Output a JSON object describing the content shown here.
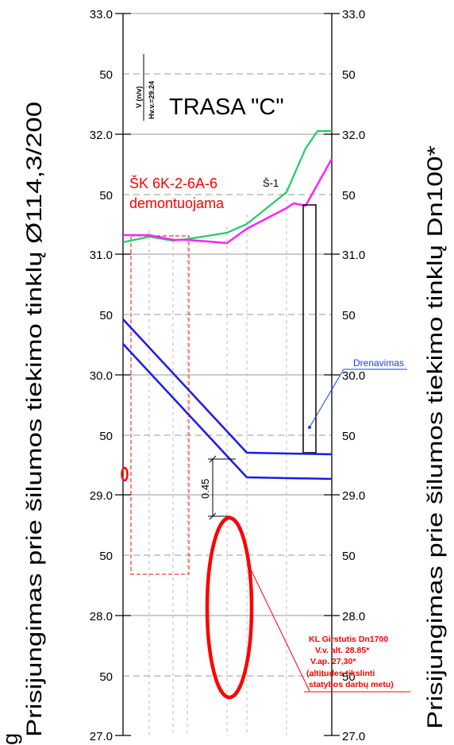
{
  "left_axis_title": "Prisijungimas prie šilumos tiekimo tinklų Ø114,3/200",
  "right_axis_title": "Prisijungimas prie šilumos tiekimo tinklų Dn100*",
  "left_axis_cut_glyph": "g",
  "title": "TRASA \"C\"",
  "scale_label_top": "V (n/v)",
  "scale_label_bottom": "Hv.v.=29.24",
  "axis_ticks": [
    "33.0",
    "50",
    "32.0",
    "50",
    "31.0",
    "50",
    "30.0",
    "50",
    "29.0",
    "50",
    "28.0",
    "50",
    "27.0"
  ],
  "demolition_note": {
    "line1": "ŠK 6K-2-6A-6",
    "line2": "demontuojama"
  },
  "well_label": "Š-1",
  "drainage_label": "Drenavimas",
  "clearance_label": "0.45",
  "crossing_note": {
    "line1": "KL Girstutis Dn1700",
    "line2": "V.v. alt. 28.85*",
    "line3": "V.ap. 27,30*",
    "line4": "(altitudes tikslinti",
    "line5": "statybos darbų metu)"
  },
  "colors": {
    "ground_existing": "#22cc66",
    "ground_design": "#ff22ff",
    "pipe": "#1a1aee",
    "annotation": "#ff0000",
    "drainage": "#1a3cff",
    "grid": "#999999"
  },
  "icons": {
    "drainage_point": "dot-marker",
    "clearance_marker": "dimension-tick"
  }
}
